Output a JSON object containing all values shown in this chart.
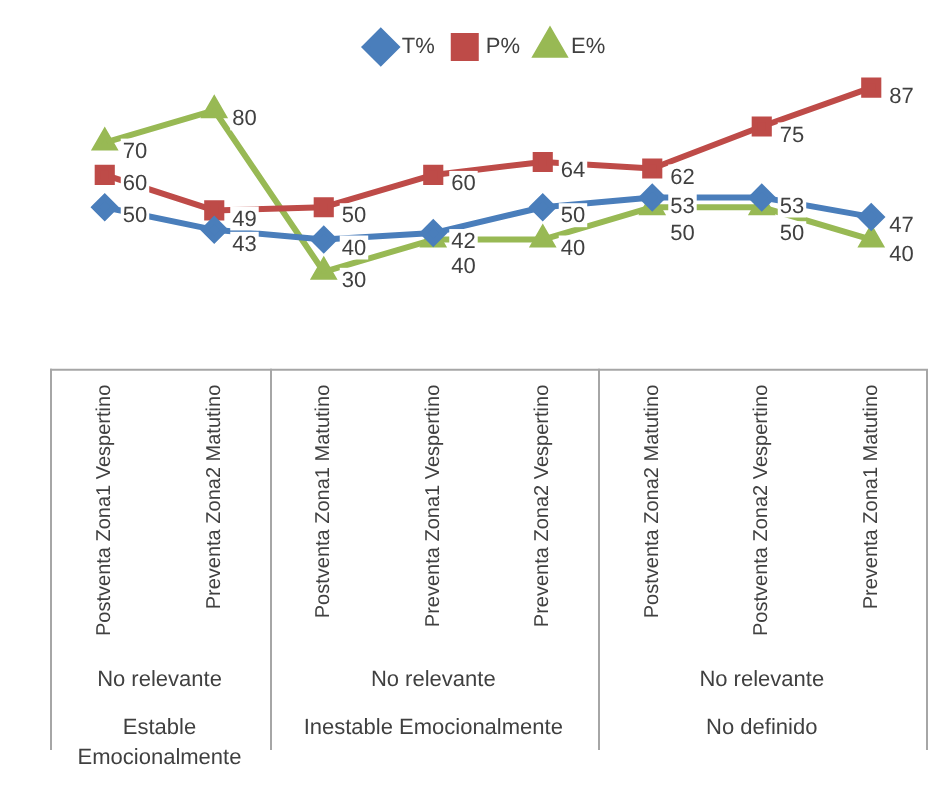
{
  "chart_data": {
    "type": "line",
    "categories": [
      "Postventa Zona1 Vespertino",
      "Preventa Zona2 Matutino",
      "Postventa Zona1 Matutino",
      "Preventa Zona1 Vespertino",
      "Preventa Zona2 Vespertino",
      "Postventa Zona2 Matutino",
      "Postventa Zona2 Vespertino",
      "Preventa Zona1 Matutino"
    ],
    "series": [
      {
        "name": "T%",
        "color": "#4a7ebb",
        "marker": "diamond",
        "values": [
          50,
          43,
          40,
          42,
          50,
          53,
          53,
          47
        ]
      },
      {
        "name": "P%",
        "color": "#be4b48",
        "marker": "square",
        "values": [
          60,
          49,
          50,
          60,
          64,
          62,
          75,
          87
        ]
      },
      {
        "name": "E%",
        "color": "#98b954",
        "marker": "triangle",
        "values": [
          70,
          80,
          30,
          40,
          40,
          50,
          50,
          40
        ]
      }
    ],
    "annotations": [
      "No relevante",
      "No relevante",
      "No relevante",
      "Estable Emocionalmente",
      "Inestable Emocionalmente",
      "No definido"
    ],
    "data_labels": true,
    "legend": "top",
    "grid": false
  }
}
